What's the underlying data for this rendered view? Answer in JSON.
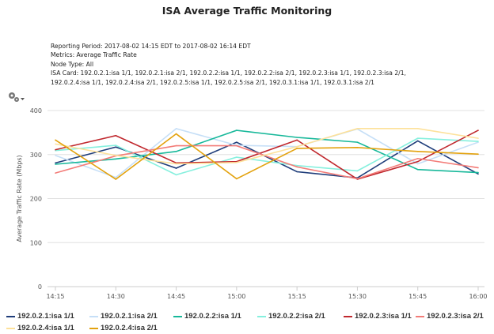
{
  "title": "ISA Average Traffic Monitoring",
  "info": {
    "period": "Reporting Period: 2017-08-02 14:15 EDT to 2017-08-02 16:14 EDT",
    "metrics": "Metrics: Average Traffic Rate",
    "node_type": "Node Type: All",
    "isa_card_1": "ISA Card: 192.0.2.1:isa 1/1, 192.0.2.1:isa 2/1, 192.0.2.2:isa 1/1, 192.0.2.2:isa 2/1, 192.0.2.3:isa 1/1, 192.0.2.3:isa 2/1,",
    "isa_card_2": "192.0.2.4:isa 1/1, 192.0.2.4:isa 2/1, 192.0.2.5:isa 1/1, 192.0.2.5:isa 2/1, 192.0.3.1:isa 1/1, 192.0.3.1:isa 2/1"
  },
  "toolbar": {
    "settings_icon": "gear-dropdown-icon"
  },
  "chart_data": {
    "type": "line",
    "title": "ISA Average Traffic Monitoring",
    "xlabel": "",
    "ylabel": "Average Traffic Rate (Mbps)",
    "ylim": [
      0,
      400
    ],
    "yticks": [
      "0",
      "100",
      "200",
      "300",
      "400"
    ],
    "categories": [
      "14:15",
      "14:30",
      "14:45",
      "15:00",
      "15:15",
      "15:30",
      "15:45",
      "16:00"
    ],
    "grid": true,
    "legend": "bottom",
    "series": [
      {
        "name": "192.0.2.1:isa 1/1",
        "color": "#1f3d7a",
        "values": [
          281,
          317,
          269,
          328,
          261,
          247,
          331,
          256
        ]
      },
      {
        "name": "192.0.2.1:isa 2/1",
        "color": "#c6dff7",
        "values": [
          298,
          248,
          359,
          321,
          318,
          358,
          279,
          328
        ]
      },
      {
        "name": "192.0.2.2:isa 1/1",
        "color": "#17b89a",
        "values": [
          278,
          290,
          307,
          355,
          339,
          328,
          266,
          259
        ]
      },
      {
        "name": "192.0.2.2:isa 2/1",
        "color": "#86f0de",
        "values": [
          309,
          321,
          254,
          294,
          275,
          263,
          337,
          330
        ]
      },
      {
        "name": "192.0.2.3:isa 1/1",
        "color": "#c0282e",
        "values": [
          311,
          343,
          281,
          284,
          333,
          244,
          284,
          355
        ]
      },
      {
        "name": "192.0.2.3:isa 2/1",
        "color": "#f37c78",
        "values": [
          258,
          297,
          320,
          320,
          272,
          245,
          291,
          270
        ]
      },
      {
        "name": "192.0.2.4:isa 1/1",
        "color": "#fde19a",
        "values": [
          324,
          298,
          279,
          282,
          318,
          359,
          359,
          337
        ]
      },
      {
        "name": "192.0.2.4:isa 2/1",
        "color": "#e3a20e",
        "values": [
          333,
          244,
          347,
          245,
          314,
          316,
          307,
          301
        ]
      }
    ]
  }
}
